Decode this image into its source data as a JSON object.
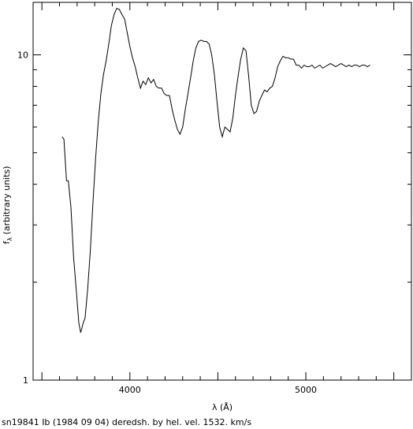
{
  "chart_data": {
    "type": "line",
    "title": "",
    "caption": "sn19841 Ib (1984 09 04) deredsh. by hel. vel.  1532. km/s",
    "xlabel": "λ (Å)",
    "ylabel_main": "f",
    "ylabel_sub": "λ",
    "ylabel_rest": " (arbitrary units)",
    "x_scale": "linear",
    "y_scale": "log",
    "xlim": [
      3450,
      5600
    ],
    "ylim": [
      1,
      14.5
    ],
    "x_ticks": [
      {
        "value": 4000,
        "label": "4000"
      },
      {
        "value": 5000,
        "label": "5000"
      }
    ],
    "y_ticks": [
      {
        "value": 1,
        "label": "1"
      },
      {
        "value": 10,
        "label": "10"
      }
    ],
    "grid": false,
    "legend": "none",
    "line_color": "#000000",
    "series": [
      {
        "x": [
          3615,
          3625,
          3640,
          3650,
          3665,
          3680,
          3695,
          3710,
          3720,
          3728,
          3735,
          3745,
          3760,
          3775,
          3790,
          3805,
          3820,
          3835,
          3850,
          3865,
          3880,
          3895,
          3910,
          3925,
          3940,
          3955,
          3970,
          3985,
          4000,
          4015,
          4030,
          4045,
          4060,
          4075,
          4090,
          4105,
          4120,
          4135,
          4150,
          4165,
          4180,
          4195,
          4210,
          4225,
          4240,
          4255,
          4270,
          4285,
          4300,
          4315,
          4330,
          4345,
          4360,
          4375,
          4390,
          4405,
          4420,
          4435,
          4450,
          4465,
          4480,
          4495,
          4510,
          4525,
          4540,
          4555,
          4570,
          4585,
          4600,
          4615,
          4630,
          4645,
          4660,
          4675,
          4690,
          4705,
          4720,
          4735,
          4750,
          4765,
          4780,
          4795,
          4810,
          4825,
          4840,
          4855,
          4870,
          4885,
          4900,
          4915,
          4930,
          4945,
          4960,
          4975,
          4990,
          5005,
          5020,
          5035,
          5050,
          5065,
          5080,
          5095,
          5110,
          5125,
          5140,
          5155,
          5170,
          5185,
          5200,
          5215,
          5230,
          5245,
          5260,
          5275,
          5290,
          5305,
          5320,
          5335,
          5350,
          5365
        ],
        "y": [
          5.6,
          5.5,
          4.1,
          4.1,
          3.4,
          2.4,
          1.9,
          1.5,
          1.4,
          1.45,
          1.5,
          1.55,
          1.9,
          2.5,
          3.5,
          4.8,
          6.2,
          7.6,
          8.7,
          9.6,
          10.8,
          12.3,
          13.3,
          13.9,
          13.8,
          13.3,
          12.9,
          11.7,
          10.6,
          9.8,
          9.2,
          8.5,
          7.9,
          8.3,
          8.1,
          8.5,
          8.2,
          8.4,
          8.0,
          7.9,
          7.9,
          7.6,
          7.5,
          7.5,
          6.8,
          6.3,
          5.9,
          5.7,
          6.0,
          6.8,
          7.6,
          8.5,
          9.6,
          10.5,
          11.0,
          11.1,
          11.0,
          11.0,
          10.8,
          10.0,
          8.7,
          7.2,
          6.0,
          5.6,
          6.0,
          5.9,
          5.8,
          6.4,
          7.5,
          8.6,
          9.7,
          10.5,
          10.3,
          8.6,
          7.0,
          6.6,
          6.7,
          7.2,
          7.5,
          7.8,
          7.7,
          7.9,
          8.0,
          8.5,
          9.2,
          9.6,
          9.9,
          9.8,
          9.8,
          9.7,
          9.7,
          9.3,
          9.3,
          9.1,
          9.3,
          9.2,
          9.2,
          9.3,
          9.1,
          9.2,
          9.3,
          9.1,
          9.2,
          9.3,
          9.4,
          9.3,
          9.2,
          9.3,
          9.4,
          9.3,
          9.2,
          9.3,
          9.2,
          9.3,
          9.3,
          9.2,
          9.3,
          9.3,
          9.2,
          9.3
        ]
      }
    ]
  }
}
